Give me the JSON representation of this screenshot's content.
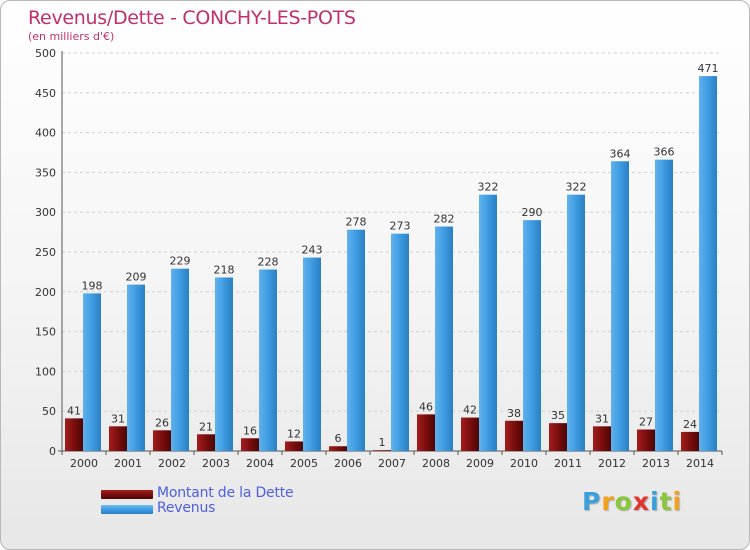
{
  "colors": {
    "debt": "#7a0e0e",
    "revenue": "#3e9be0",
    "title": "#c0306e",
    "legend_text": "#4f5fe0"
  },
  "chart_data": {
    "type": "bar",
    "title": "Revenus/Dette - CONCHY-LES-POTS",
    "subtitle": "(en milliers d'€)",
    "xlabel": "",
    "ylabel": "",
    "ylim": [
      0,
      500
    ],
    "yticks": [
      0,
      50,
      100,
      150,
      200,
      250,
      300,
      350,
      400,
      450,
      500
    ],
    "grid": true,
    "legend_position": "bottom-left",
    "categories": [
      "2000",
      "2001",
      "2002",
      "2003",
      "2004",
      "2005",
      "2006",
      "2007",
      "2008",
      "2009",
      "2010",
      "2011",
      "2012",
      "2013",
      "2014"
    ],
    "series": [
      {
        "name": "Montant de la Dette",
        "color": "#7a0e0e",
        "values": [
          41,
          31,
          26,
          21,
          16,
          12,
          6,
          1,
          46,
          42,
          38,
          35,
          31,
          27,
          24
        ]
      },
      {
        "name": "Revenus",
        "color": "#3e9be0",
        "values": [
          198,
          209,
          229,
          218,
          228,
          243,
          278,
          273,
          282,
          322,
          290,
          322,
          364,
          366,
          471
        ]
      }
    ]
  },
  "logo": {
    "letters": [
      "P",
      "r",
      "o",
      "x",
      "i",
      "t",
      "i"
    ],
    "letter_colors": [
      "#3aa0dc",
      "#f2a020",
      "#8cc63e",
      "#e2342d",
      "#3aa0dc",
      "#8cc63e",
      "#f2a020"
    ]
  }
}
